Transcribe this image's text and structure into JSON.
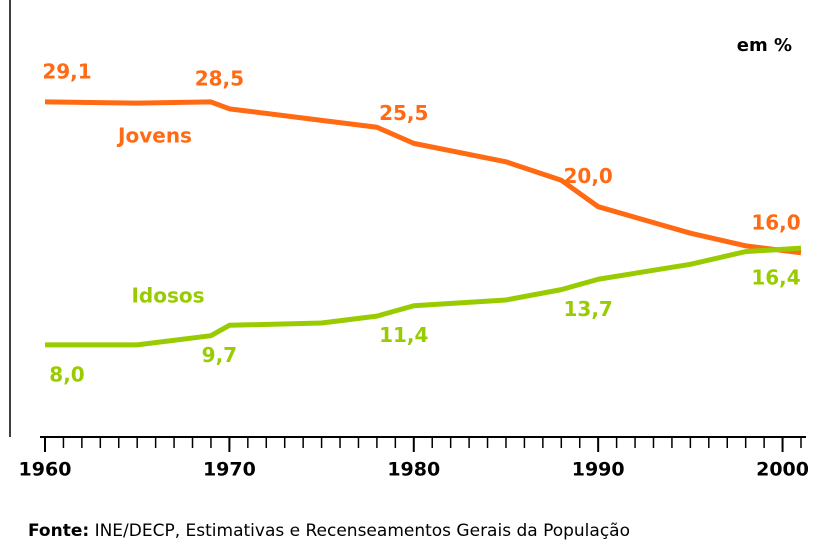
{
  "chart_data": {
    "type": "line",
    "unit_label": "em %",
    "x": [
      1960,
      1965,
      1969,
      1970,
      1975,
      1978,
      1980,
      1985,
      1988,
      1990,
      1995,
      1998,
      2001
    ],
    "series": [
      {
        "name": "Jovens",
        "color": "#ff6a13",
        "values": [
          29.1,
          29.0,
          29.1,
          28.5,
          27.5,
          26.9,
          25.5,
          23.9,
          22.3,
          20.0,
          17.7,
          16.6,
          16.0
        ],
        "value_labels": [
          "29,1",
          null,
          null,
          "28,5",
          null,
          null,
          "25,5",
          null,
          null,
          "20,0",
          null,
          null,
          "16,0"
        ]
      },
      {
        "name": "Idosos",
        "color": "#99cc00",
        "values": [
          8.0,
          8.0,
          8.8,
          9.7,
          9.9,
          10.5,
          11.4,
          11.9,
          12.8,
          13.7,
          15.0,
          16.1,
          16.4
        ],
        "value_labels": [
          "8,0",
          null,
          null,
          "9,7",
          null,
          null,
          "11,4",
          null,
          null,
          "13,7",
          null,
          null,
          "16,4"
        ]
      }
    ],
    "xlim": [
      1960,
      2001
    ],
    "xticks": [
      1960,
      1970,
      1980,
      1990,
      2000
    ],
    "xminorticks": [
      1960,
      1961,
      1962,
      1963,
      1964,
      1965,
      1966,
      1967,
      1968,
      1969,
      1970,
      1971,
      1972,
      1973,
      1974,
      1975,
      1976,
      1977,
      1978,
      1979,
      1980,
      1981,
      1982,
      1983,
      1984,
      1985,
      1986,
      1987,
      1988,
      1989,
      1990,
      1991,
      1992,
      1993,
      1994,
      1995,
      1996,
      1997,
      1998,
      1999,
      2000,
      2001
    ],
    "ylim": [
      0,
      35
    ],
    "source": {
      "label": "Fonte:",
      "text": "INE/DECP, Estimativas e Recenseamentos Gerais da População"
    }
  }
}
